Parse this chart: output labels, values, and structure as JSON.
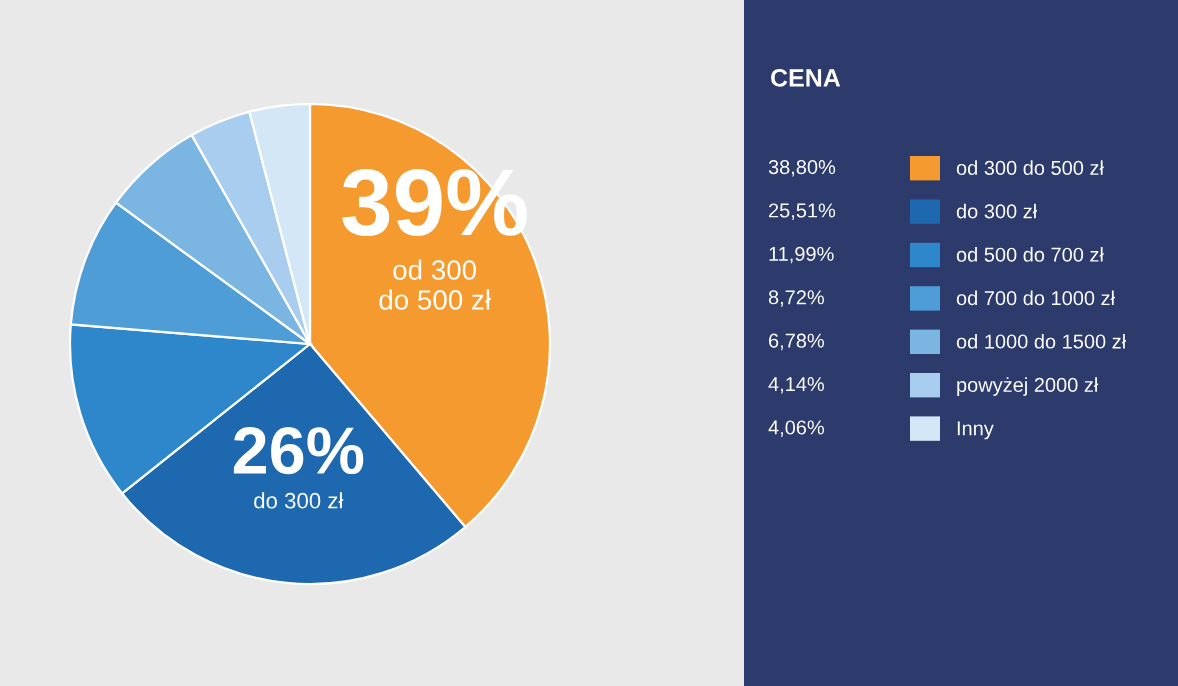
{
  "chart_data": {
    "type": "pie",
    "title": "CENA",
    "categories": [
      "od 300 do 500 zł",
      "do 300 zł",
      "od 500 do 700 zł",
      "od 700 do 1000 zł",
      "od 1000 do 1500 zł",
      "powyżej 2000 zł",
      "Inny"
    ],
    "values": [
      38.8,
      25.51,
      11.99,
      8.72,
      6.78,
      4.14,
      4.06
    ],
    "value_labels": [
      "38,80%",
      "25,51%",
      "11,99%",
      "8,72%",
      "6,78%",
      "4,14%",
      "4,06%"
    ],
    "colors": [
      "#f59a2f",
      "#1d68ae",
      "#2f87cb",
      "#4f9dd6",
      "#7bb5e2",
      "#a9cdee",
      "#d3e7f7"
    ],
    "annotations": [
      {
        "text": "39%",
        "x": "od 300 do 500 zł"
      },
      {
        "text": "od 300\ndo 500 zł",
        "x": "od 300 do 500 zł"
      },
      {
        "text": "26%",
        "x": "do 300 zł"
      },
      {
        "text": "do 300 zł",
        "x": "do 300 zł"
      }
    ],
    "legend": "right"
  }
}
